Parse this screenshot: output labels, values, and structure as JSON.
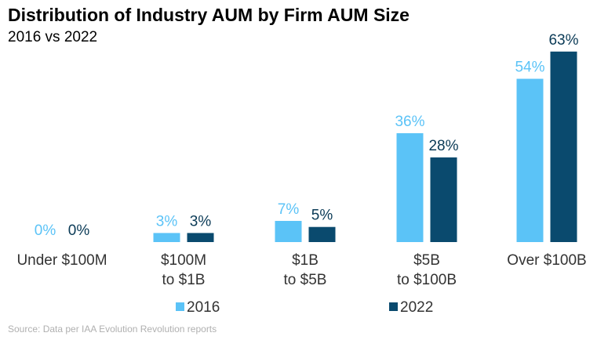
{
  "chart_data": {
    "type": "bar",
    "title": "Distribution of Industry AUM by Firm AUM Size",
    "subtitle": "2016 vs 2022",
    "categories": [
      [
        "Under $100M"
      ],
      [
        "$100M",
        "to $1B"
      ],
      [
        "$1B",
        "to $5B"
      ],
      [
        "$5B",
        "to $100B"
      ],
      [
        "Over $100B"
      ]
    ],
    "series": [
      {
        "name": "2016",
        "color": "#5bc3f7",
        "values": [
          0,
          3,
          7,
          36,
          54
        ],
        "labels": [
          "0%",
          "3%",
          "7%",
          "36%",
          "54%"
        ]
      },
      {
        "name": "2022",
        "color": "#0a4a6e",
        "values": [
          0,
          3,
          5,
          28,
          63
        ],
        "labels": [
          "0%",
          "3%",
          "5%",
          "28%",
          "63%"
        ]
      }
    ],
    "ylim": [
      0,
      70
    ],
    "grid": false,
    "legend_position": "bottom"
  },
  "source": "Source: Data per IAA Evolution Revolution reports"
}
